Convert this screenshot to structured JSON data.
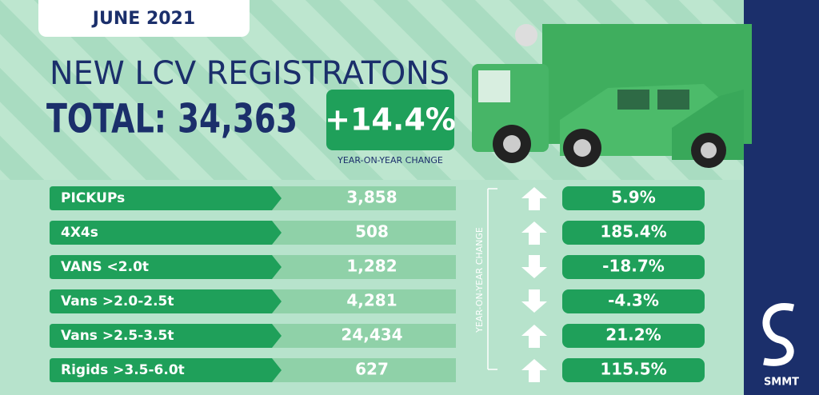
{
  "header": {
    "date": "JUNE 2021",
    "title": "NEW LCV REGISTRATONS",
    "total_label": "TOTAL:",
    "total": "34,363",
    "change": "+14.4%",
    "change_label": "YEAR-ON-YEAR CHANGE"
  },
  "table": {
    "side_label": "YEAR-ON-YEAR CHANGE",
    "rows": [
      {
        "name": "PICKUPs",
        "value": "3,858",
        "change": "5.9%",
        "direction": "up"
      },
      {
        "name": "4X4s",
        "value": "508",
        "change": "185.4%",
        "direction": "up"
      },
      {
        "name": "VANS <2.0t",
        "value": "1,282",
        "change": "-18.7%",
        "direction": "down"
      },
      {
        "name": "Vans >2.0-2.5t",
        "value": "4,281",
        "change": "-4.3%",
        "direction": "down"
      },
      {
        "name": "Vans >2.5-3.5t",
        "value": "24,434",
        "change": "21.2%",
        "direction": "up"
      },
      {
        "name": "Rigids >3.5-6.0t",
        "value": "627",
        "change": "115.5%",
        "direction": "up"
      }
    ]
  },
  "logo": "SMMT"
}
